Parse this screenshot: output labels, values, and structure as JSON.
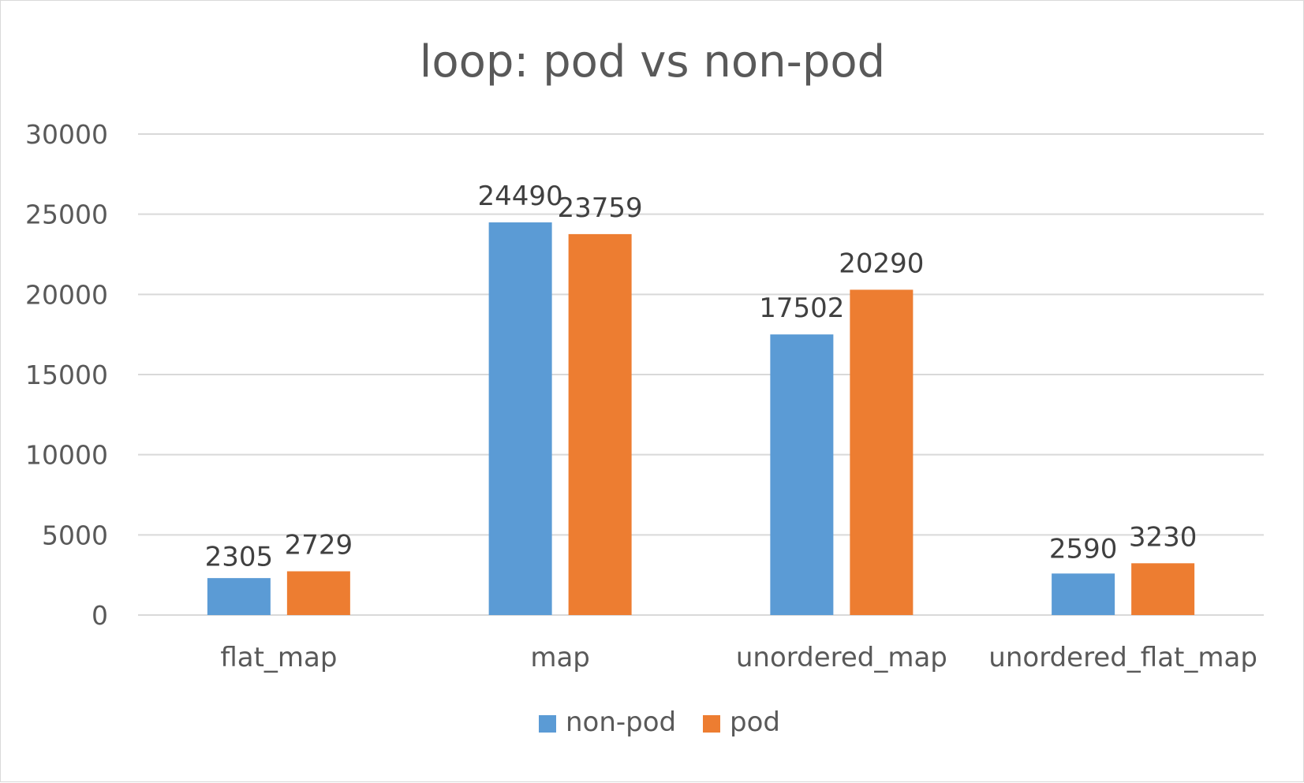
{
  "chart_data": {
    "type": "bar",
    "title": "loop: pod vs non-pod",
    "xlabel": "",
    "ylabel": "",
    "ylim": [
      0,
      30000
    ],
    "yticks": [
      0,
      5000,
      10000,
      15000,
      20000,
      25000,
      30000
    ],
    "grid": true,
    "legend_position": "bottom",
    "categories": [
      "flat_map",
      "map",
      "unordered_map",
      "unordered_flat_map"
    ],
    "series": [
      {
        "name": "non-pod",
        "color": "#5b9bd5",
        "values": [
          2305,
          24490,
          17502,
          2590
        ]
      },
      {
        "name": "pod",
        "color": "#ed7d31",
        "values": [
          2729,
          23759,
          20290,
          3230
        ]
      }
    ]
  }
}
